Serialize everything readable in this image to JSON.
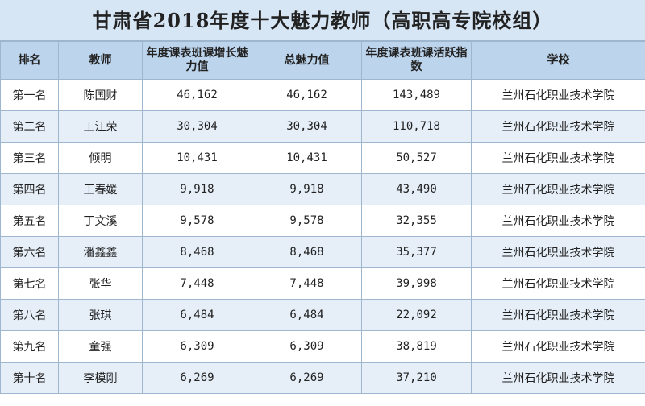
{
  "title": "甘肃省2018年度十大魅力教师（高职高专院校组）",
  "headers": {
    "rank": "排名",
    "teacher": "教师",
    "growth": "年度课表班课增长魅力值",
    "total": "总魅力值",
    "active": "年度课表班课活跃指数",
    "school": "学校"
  },
  "rows": [
    {
      "rank": "第一名",
      "teacher": "陈国财",
      "growth": "46,162",
      "total": "46,162",
      "active": "143,489",
      "school": "兰州石化职业技术学院"
    },
    {
      "rank": "第二名",
      "teacher": "王江荣",
      "growth": "30,304",
      "total": "30,304",
      "active": "110,718",
      "school": "兰州石化职业技术学院"
    },
    {
      "rank": "第三名",
      "teacher": "倾明",
      "growth": "10,431",
      "total": "10,431",
      "active": "50,527",
      "school": "兰州石化职业技术学院"
    },
    {
      "rank": "第四名",
      "teacher": "王春媛",
      "growth": "9,918",
      "total": "9,918",
      "active": "43,490",
      "school": "兰州石化职业技术学院"
    },
    {
      "rank": "第五名",
      "teacher": "丁文溪",
      "growth": "9,578",
      "total": "9,578",
      "active": "32,355",
      "school": "兰州石化职业技术学院"
    },
    {
      "rank": "第六名",
      "teacher": "潘鑫鑫",
      "growth": "8,468",
      "total": "8,468",
      "active": "35,377",
      "school": "兰州石化职业技术学院"
    },
    {
      "rank": "第七名",
      "teacher": "张华",
      "growth": "7,448",
      "total": "7,448",
      "active": "39,998",
      "school": "兰州石化职业技术学院"
    },
    {
      "rank": "第八名",
      "teacher": "张琪",
      "growth": "6,484",
      "total": "6,484",
      "active": "22,092",
      "school": "兰州石化职业技术学院"
    },
    {
      "rank": "第九名",
      "teacher": "童强",
      "growth": "6,309",
      "total": "6,309",
      "active": "38,819",
      "school": "兰州石化职业技术学院"
    },
    {
      "rank": "第十名",
      "teacher": "李模刚",
      "growth": "6,269",
      "total": "6,269",
      "active": "37,210",
      "school": "兰州石化职业技术学院"
    }
  ]
}
